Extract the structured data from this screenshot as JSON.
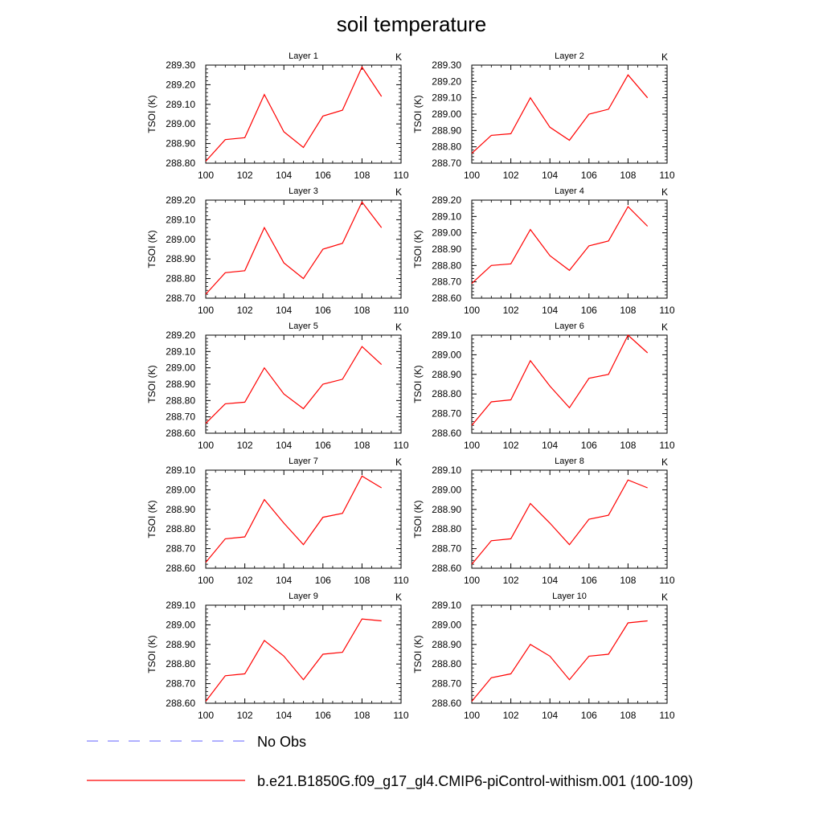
{
  "title": "soil temperature",
  "colors": {
    "model_line": "#ff0000",
    "obs_line": "#8080ff",
    "axis": "#000000"
  },
  "legend": {
    "placement": "bottom",
    "entries": [
      {
        "label": "No Obs",
        "style": "dashed",
        "color": "#8080ff"
      },
      {
        "label": "b.e21.B1850G.f09_g17_gl4.CMIP6-piControl-withism.001 (100-109)",
        "style": "solid",
        "color": "#ff0000"
      }
    ]
  },
  "chart_data": [
    {
      "type": "line",
      "title": "Layer 1",
      "units": "K",
      "ylabel": "TSOI  (K)",
      "xlim": [
        100,
        110
      ],
      "ylim": [
        288.8,
        289.3
      ],
      "xticks": [
        100,
        102,
        104,
        106,
        108,
        110
      ],
      "xtick_labels": [
        "100",
        "102",
        "104",
        "106",
        "108",
        "110"
      ],
      "yticks": [
        288.8,
        288.9,
        289.0,
        289.1,
        289.2,
        289.3
      ],
      "ytick_labels": [
        "288.80",
        "288.90",
        "289.00",
        "289.10",
        "289.20",
        "289.30"
      ],
      "x": [
        100,
        101,
        102,
        103,
        104,
        105,
        106,
        107,
        108,
        109
      ],
      "series": [
        {
          "values": [
            288.81,
            288.92,
            288.93,
            289.15,
            288.96,
            288.88,
            289.04,
            289.07,
            289.29,
            289.14
          ]
        }
      ]
    },
    {
      "type": "line",
      "title": "Layer 2",
      "units": "K",
      "ylabel": "TSOI  (K)",
      "xlim": [
        100,
        110
      ],
      "ylim": [
        288.7,
        289.3
      ],
      "xticks": [
        100,
        102,
        104,
        106,
        108,
        110
      ],
      "xtick_labels": [
        "100",
        "102",
        "104",
        "106",
        "108",
        "110"
      ],
      "yticks": [
        288.7,
        288.8,
        288.9,
        289.0,
        289.1,
        289.2,
        289.3
      ],
      "ytick_labels": [
        "288.70",
        "288.80",
        "288.90",
        "289.00",
        "289.10",
        "289.20",
        "289.30"
      ],
      "x": [
        100,
        101,
        102,
        103,
        104,
        105,
        106,
        107,
        108,
        109
      ],
      "series": [
        {
          "values": [
            288.76,
            288.87,
            288.88,
            289.1,
            288.92,
            288.84,
            289.0,
            289.03,
            289.24,
            289.1
          ]
        }
      ]
    },
    {
      "type": "line",
      "title": "Layer 3",
      "units": "K",
      "ylabel": "TSOI  (K)",
      "xlim": [
        100,
        110
      ],
      "ylim": [
        288.7,
        289.2
      ],
      "xticks": [
        100,
        102,
        104,
        106,
        108,
        110
      ],
      "xtick_labels": [
        "100",
        "102",
        "104",
        "106",
        "108",
        "110"
      ],
      "yticks": [
        288.7,
        288.8,
        288.9,
        289.0,
        289.1,
        289.2
      ],
      "ytick_labels": [
        "288.70",
        "288.80",
        "288.90",
        "289.00",
        "289.10",
        "289.20"
      ],
      "x": [
        100,
        101,
        102,
        103,
        104,
        105,
        106,
        107,
        108,
        109
      ],
      "series": [
        {
          "values": [
            288.72,
            288.83,
            288.84,
            289.06,
            288.88,
            288.8,
            288.95,
            288.98,
            289.19,
            289.06
          ]
        }
      ]
    },
    {
      "type": "line",
      "title": "Layer 4",
      "units": "K",
      "ylabel": "TSOI  (K)",
      "xlim": [
        100,
        110
      ],
      "ylim": [
        288.6,
        289.2
      ],
      "xticks": [
        100,
        102,
        104,
        106,
        108,
        110
      ],
      "xtick_labels": [
        "100",
        "102",
        "104",
        "106",
        "108",
        "110"
      ],
      "yticks": [
        288.6,
        288.7,
        288.8,
        288.9,
        289.0,
        289.1,
        289.2
      ],
      "ytick_labels": [
        "288.60",
        "288.70",
        "288.80",
        "288.90",
        "289.00",
        "289.10",
        "289.20"
      ],
      "x": [
        100,
        101,
        102,
        103,
        104,
        105,
        106,
        107,
        108,
        109
      ],
      "series": [
        {
          "values": [
            288.69,
            288.8,
            288.81,
            289.02,
            288.86,
            288.77,
            288.92,
            288.95,
            289.16,
            289.04
          ]
        }
      ]
    },
    {
      "type": "line",
      "title": "Layer 5",
      "units": "K",
      "ylabel": "TSOI  (K)",
      "xlim": [
        100,
        110
      ],
      "ylim": [
        288.6,
        289.2
      ],
      "xticks": [
        100,
        102,
        104,
        106,
        108,
        110
      ],
      "xtick_labels": [
        "100",
        "102",
        "104",
        "106",
        "108",
        "110"
      ],
      "yticks": [
        288.6,
        288.7,
        288.8,
        288.9,
        289.0,
        289.1,
        289.2
      ],
      "ytick_labels": [
        "288.60",
        "288.70",
        "288.80",
        "288.90",
        "289.00",
        "289.10",
        "289.20"
      ],
      "x": [
        100,
        101,
        102,
        103,
        104,
        105,
        106,
        107,
        108,
        109
      ],
      "series": [
        {
          "values": [
            288.66,
            288.78,
            288.79,
            289.0,
            288.84,
            288.75,
            288.9,
            288.93,
            289.13,
            289.02
          ]
        }
      ]
    },
    {
      "type": "line",
      "title": "Layer 6",
      "units": "K",
      "ylabel": "TSOI  (K)",
      "xlim": [
        100,
        110
      ],
      "ylim": [
        288.6,
        289.1
      ],
      "xticks": [
        100,
        102,
        104,
        106,
        108,
        110
      ],
      "xtick_labels": [
        "100",
        "102",
        "104",
        "106",
        "108",
        "110"
      ],
      "yticks": [
        288.6,
        288.7,
        288.8,
        288.9,
        289.0,
        289.1
      ],
      "ytick_labels": [
        "288.60",
        "288.70",
        "288.80",
        "288.90",
        "289.00",
        "289.10"
      ],
      "x": [
        100,
        101,
        102,
        103,
        104,
        105,
        106,
        107,
        108,
        109
      ],
      "series": [
        {
          "values": [
            288.64,
            288.76,
            288.77,
            288.97,
            288.84,
            288.73,
            288.88,
            288.9,
            289.1,
            289.01
          ]
        }
      ]
    },
    {
      "type": "line",
      "title": "Layer 7",
      "units": "K",
      "ylabel": "TSOI  (K)",
      "xlim": [
        100,
        110
      ],
      "ylim": [
        288.6,
        289.1
      ],
      "xticks": [
        100,
        102,
        104,
        106,
        108,
        110
      ],
      "xtick_labels": [
        "100",
        "102",
        "104",
        "106",
        "108",
        "110"
      ],
      "yticks": [
        288.6,
        288.7,
        288.8,
        288.9,
        289.0,
        289.1
      ],
      "ytick_labels": [
        "288.60",
        "288.70",
        "288.80",
        "288.90",
        "289.00",
        "289.10"
      ],
      "x": [
        100,
        101,
        102,
        103,
        104,
        105,
        106,
        107,
        108,
        109
      ],
      "series": [
        {
          "values": [
            288.63,
            288.75,
            288.76,
            288.95,
            288.83,
            288.72,
            288.86,
            288.88,
            289.07,
            289.01
          ]
        }
      ]
    },
    {
      "type": "line",
      "title": "Layer 8",
      "units": "K",
      "ylabel": "TSOI  (K)",
      "xlim": [
        100,
        110
      ],
      "ylim": [
        288.6,
        289.1
      ],
      "xticks": [
        100,
        102,
        104,
        106,
        108,
        110
      ],
      "xtick_labels": [
        "100",
        "102",
        "104",
        "106",
        "108",
        "110"
      ],
      "yticks": [
        288.6,
        288.7,
        288.8,
        288.9,
        289.0,
        289.1
      ],
      "ytick_labels": [
        "288.60",
        "288.70",
        "288.80",
        "288.90",
        "289.00",
        "289.10"
      ],
      "x": [
        100,
        101,
        102,
        103,
        104,
        105,
        106,
        107,
        108,
        109
      ],
      "series": [
        {
          "values": [
            288.62,
            288.74,
            288.75,
            288.93,
            288.83,
            288.72,
            288.85,
            288.87,
            289.05,
            289.01
          ]
        }
      ]
    },
    {
      "type": "line",
      "title": "Layer 9",
      "units": "K",
      "ylabel": "TSOI  (K)",
      "xlim": [
        100,
        110
      ],
      "ylim": [
        288.6,
        289.1
      ],
      "xticks": [
        100,
        102,
        104,
        106,
        108,
        110
      ],
      "xtick_labels": [
        "100",
        "102",
        "104",
        "106",
        "108",
        "110"
      ],
      "yticks": [
        288.6,
        288.7,
        288.8,
        288.9,
        289.0,
        289.1
      ],
      "ytick_labels": [
        "288.60",
        "288.70",
        "288.80",
        "288.90",
        "289.00",
        "289.10"
      ],
      "x": [
        100,
        101,
        102,
        103,
        104,
        105,
        106,
        107,
        108,
        109
      ],
      "series": [
        {
          "values": [
            288.61,
            288.74,
            288.75,
            288.92,
            288.84,
            288.72,
            288.85,
            288.86,
            289.03,
            289.02
          ]
        }
      ]
    },
    {
      "type": "line",
      "title": "Layer 10",
      "units": "K",
      "ylabel": "TSOI  (K)",
      "xlim": [
        100,
        110
      ],
      "ylim": [
        288.6,
        289.1
      ],
      "xticks": [
        100,
        102,
        104,
        106,
        108,
        110
      ],
      "xtick_labels": [
        "100",
        "102",
        "104",
        "106",
        "108",
        "110"
      ],
      "yticks": [
        288.6,
        288.7,
        288.8,
        288.9,
        289.0,
        289.1
      ],
      "ytick_labels": [
        "288.60",
        "288.70",
        "288.80",
        "288.90",
        "289.00",
        "289.10"
      ],
      "x": [
        100,
        101,
        102,
        103,
        104,
        105,
        106,
        107,
        108,
        109
      ],
      "series": [
        {
          "values": [
            288.61,
            288.73,
            288.75,
            288.9,
            288.84,
            288.72,
            288.84,
            288.85,
            289.01,
            289.02
          ]
        }
      ]
    }
  ]
}
